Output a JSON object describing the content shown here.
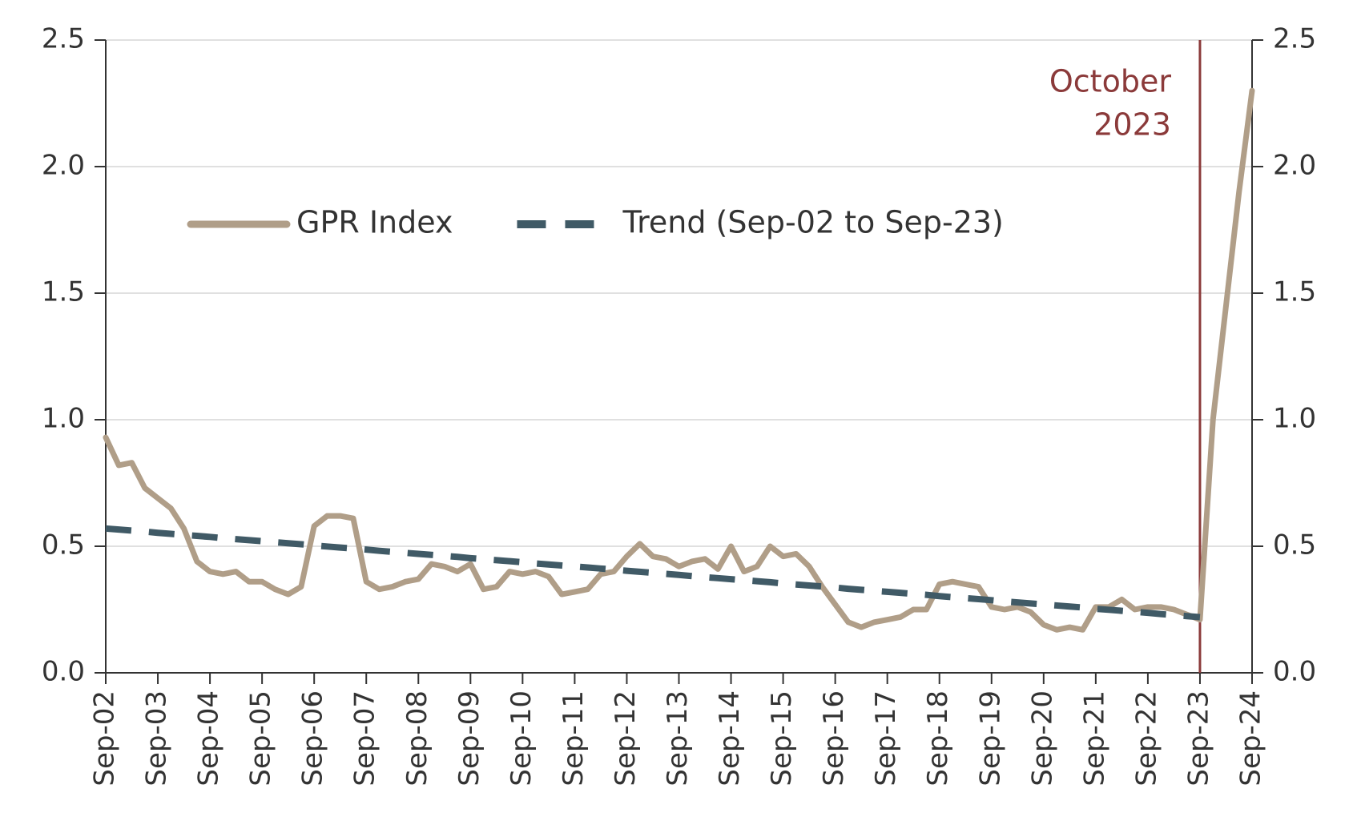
{
  "chart_data": {
    "type": "line",
    "categories": [
      "Sep-02",
      null,
      null,
      null,
      "Sep-03",
      null,
      null,
      null,
      "Sep-04",
      null,
      null,
      null,
      "Sep-05",
      null,
      null,
      null,
      "Sep-06",
      null,
      null,
      null,
      "Sep-07",
      null,
      null,
      null,
      "Sep-08",
      null,
      null,
      null,
      "Sep-09",
      null,
      null,
      null,
      "Sep-10",
      null,
      null,
      null,
      "Sep-11",
      null,
      null,
      null,
      "Sep-12",
      null,
      null,
      null,
      "Sep-13",
      null,
      null,
      null,
      "Sep-14",
      null,
      null,
      null,
      "Sep-15",
      null,
      null,
      null,
      "Sep-16",
      null,
      null,
      null,
      "Sep-17",
      null,
      null,
      null,
      "Sep-18",
      null,
      null,
      null,
      "Sep-19",
      null,
      null,
      null,
      "Sep-20",
      null,
      null,
      null,
      "Sep-21",
      null,
      null,
      null,
      "Sep-22",
      null,
      null,
      null,
      "Sep-23",
      null,
      null,
      null,
      "Sep-24"
    ],
    "series": [
      {
        "name": "GPR Index",
        "color": "#b09e88",
        "dash": false,
        "values": [
          0.93,
          0.82,
          0.83,
          0.73,
          0.69,
          0.65,
          0.57,
          0.44,
          0.4,
          0.39,
          0.4,
          0.36,
          0.36,
          0.33,
          0.31,
          0.34,
          0.58,
          0.62,
          0.62,
          0.61,
          0.36,
          0.33,
          0.34,
          0.36,
          0.37,
          0.43,
          0.42,
          0.4,
          0.43,
          0.33,
          0.34,
          0.4,
          0.39,
          0.4,
          0.38,
          0.31,
          0.32,
          0.33,
          0.39,
          0.4,
          0.46,
          0.51,
          0.46,
          0.45,
          0.42,
          0.44,
          0.45,
          0.41,
          0.5,
          0.4,
          0.42,
          0.5,
          0.46,
          0.47,
          0.42,
          0.34,
          0.27,
          0.2,
          0.18,
          0.2,
          0.21,
          0.22,
          0.25,
          0.25,
          0.35,
          0.36,
          0.35,
          0.34,
          0.26,
          0.25,
          0.26,
          0.24,
          0.19,
          0.17,
          0.18,
          0.17,
          0.26,
          0.26,
          0.29,
          0.25,
          0.26,
          0.26,
          0.25,
          0.23,
          0.21,
          1.0,
          1.45,
          1.9,
          2.3
        ]
      },
      {
        "name": "Trend (Sep-02 to Sep-23)",
        "color": "#405a66",
        "dash": true,
        "values": [
          0.57,
          0.566,
          0.562,
          0.558,
          0.553,
          0.549,
          0.545,
          0.541,
          0.537,
          0.532,
          0.528,
          0.524,
          0.52,
          0.516,
          0.512,
          0.508,
          0.503,
          0.499,
          0.495,
          0.491,
          0.487,
          0.482,
          0.478,
          0.474,
          0.47,
          0.466,
          0.462,
          0.458,
          0.453,
          0.449,
          0.445,
          0.441,
          0.437,
          0.432,
          0.428,
          0.424,
          0.42,
          0.416,
          0.412,
          0.408,
          0.403,
          0.399,
          0.395,
          0.391,
          0.387,
          0.382,
          0.378,
          0.374,
          0.37,
          0.366,
          0.362,
          0.358,
          0.353,
          0.349,
          0.345,
          0.341,
          0.337,
          0.332,
          0.328,
          0.324,
          0.32,
          0.316,
          0.312,
          0.308,
          0.303,
          0.299,
          0.295,
          0.291,
          0.287,
          0.282,
          0.278,
          0.274,
          0.27,
          0.266,
          0.262,
          0.258,
          0.253,
          0.249,
          0.245,
          0.241,
          0.237,
          0.232,
          0.228,
          0.224,
          0.22,
          null,
          null,
          null,
          null
        ]
      }
    ],
    "ylim": [
      0,
      2.5
    ],
    "yticks": [
      {
        "value": 0,
        "label": "0.0"
      },
      0.5,
      {
        "value": 1,
        "label": "1.0"
      },
      1.5,
      {
        "value": 2,
        "label": "2.0"
      },
      2.5
    ],
    "y2lim": [
      0,
      2.5
    ],
    "y2ticks": [
      {
        "value": 0,
        "label": "0.0"
      },
      0.5,
      {
        "value": 1,
        "label": "1.0"
      },
      1.5,
      {
        "value": 2,
        "label": "2.0"
      },
      2.5
    ],
    "grid": true,
    "legend": "top-left",
    "annotation": {
      "lines": [
        "October",
        "2023"
      ],
      "x": "Sep-23",
      "color": "#8b3a3a"
    }
  }
}
